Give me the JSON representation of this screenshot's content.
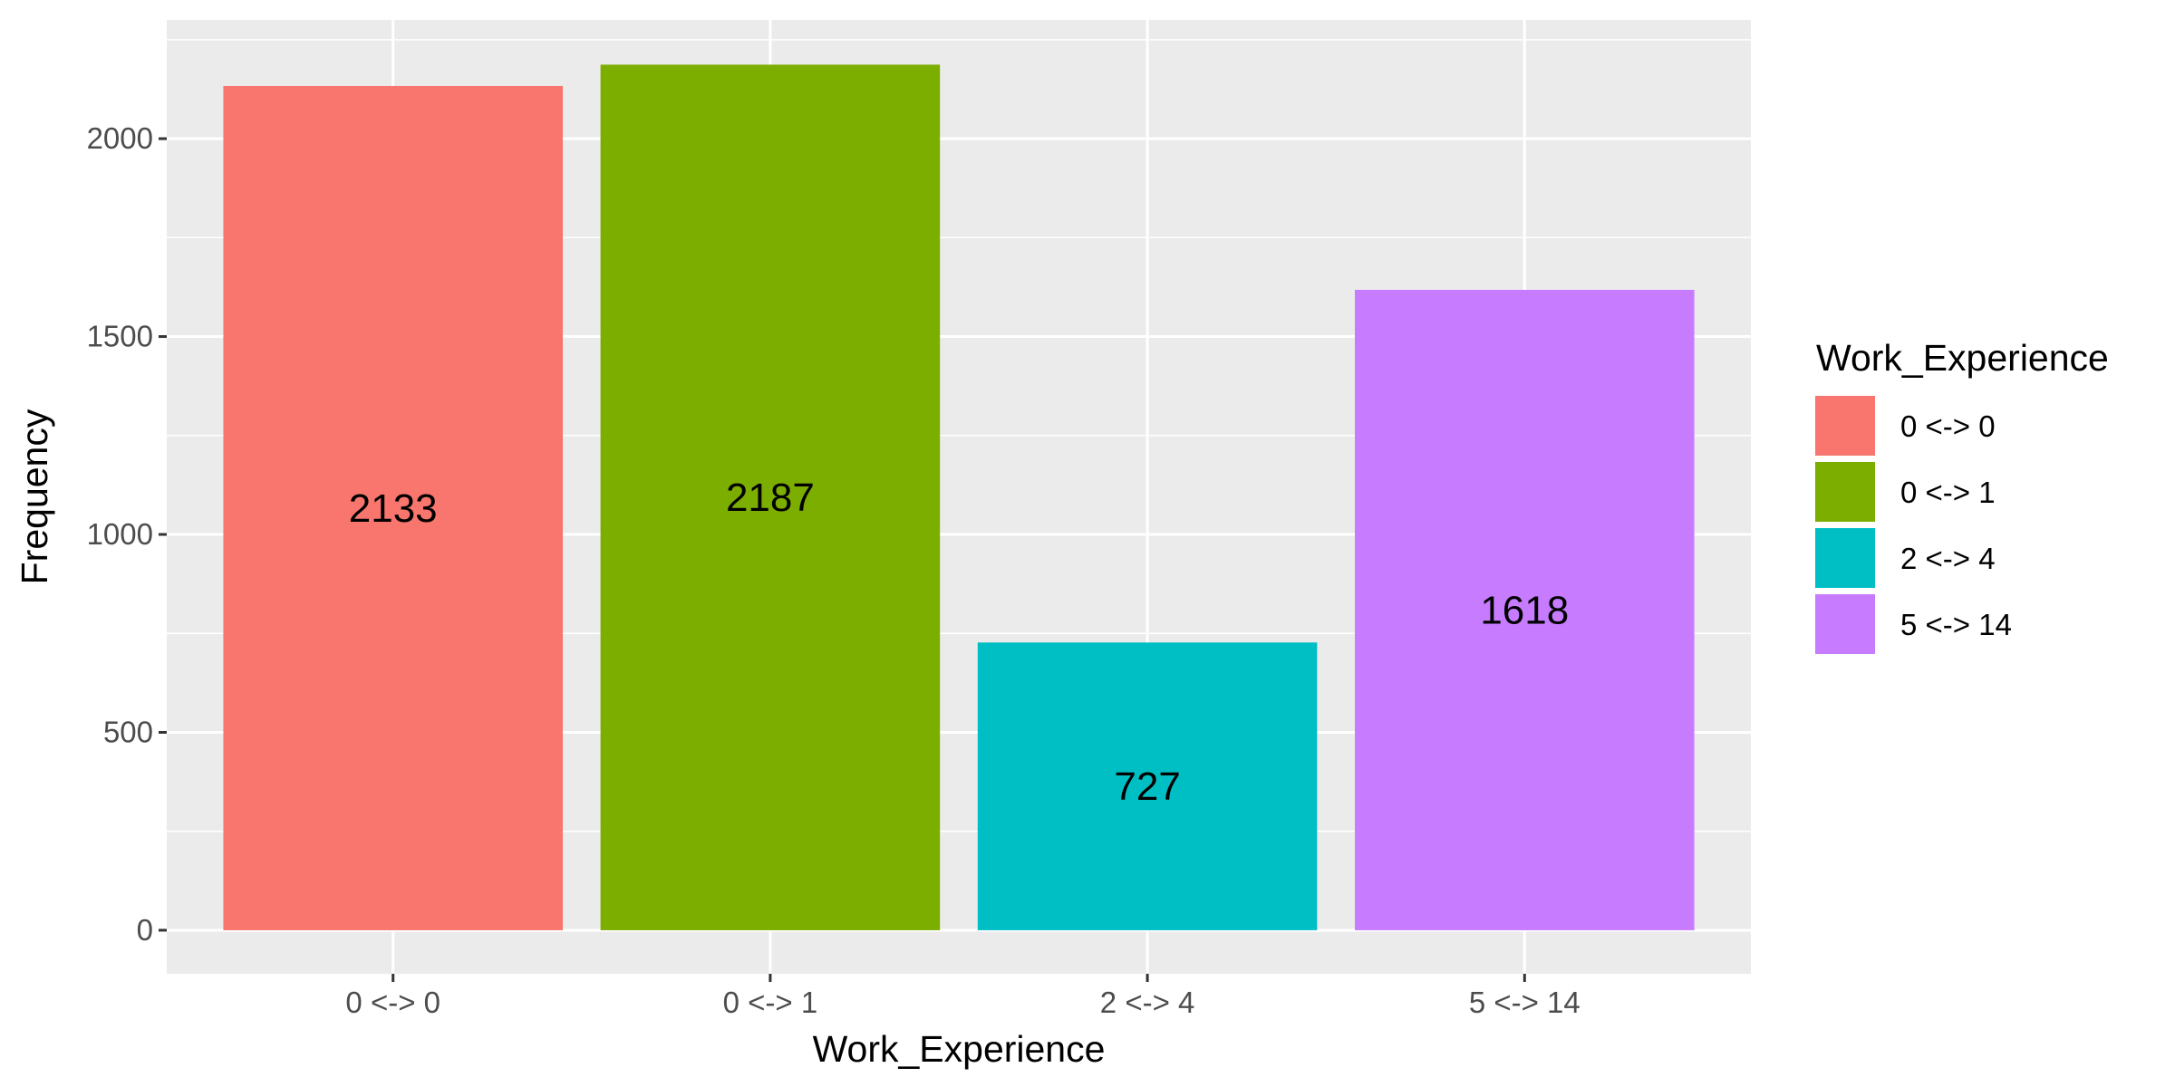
{
  "chart_data": {
    "type": "bar",
    "categories": [
      "0 <-> 0",
      "0 <-> 1",
      "2 <-> 4",
      "5 <-> 14"
    ],
    "values": [
      2133,
      2187,
      727,
      1618
    ],
    "colors": [
      "#F8766D",
      "#7CAE00",
      "#00BFC4",
      "#C77CFF"
    ],
    "data_labels": [
      "2133",
      "2187",
      "727",
      "1618"
    ],
    "xlabel": "Work_Experience",
    "ylabel": "Frequency",
    "ylim": [
      -110,
      2300
    ],
    "yticks": [
      0,
      500,
      1000,
      1500,
      2000
    ],
    "ytick_labels": [
      "0",
      "500",
      "1000",
      "1500",
      "2000"
    ],
    "grid": true,
    "panel_background": "#EBEBEB",
    "legend": {
      "title": "Work_Experience",
      "position": "right",
      "entries": [
        "0 <-> 0",
        "0 <-> 1",
        "2 <-> 4",
        "5 <-> 14"
      ]
    }
  }
}
